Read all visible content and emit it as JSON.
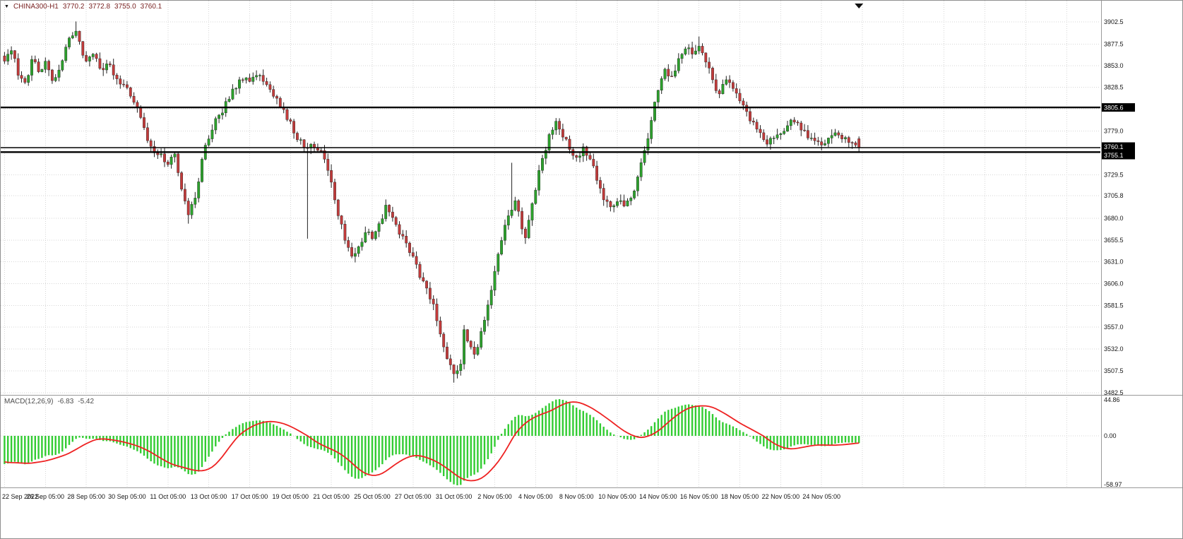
{
  "header": {
    "symbol_timeframe": "CHINA300-H1",
    "open": "3770.2",
    "high": "3772.8",
    "low": "3755.0",
    "close": "3760.1"
  },
  "macd": {
    "label": "MACD(12,26,9)",
    "value": "-6.83",
    "signal_value": "-5.42"
  },
  "chart_data": {
    "type": "candlestick",
    "title": "CHINA300-H1",
    "symbol": "CHINA300",
    "timeframe": "H1",
    "bars": 252,
    "bars_per_gridline": 12,
    "ohlc_last": {
      "o": 3770.2,
      "h": 3772.8,
      "l": 3755.0,
      "c": 3760.1
    },
    "levels": {
      "resistance": 3805.6,
      "support": 3755.1,
      "bid": 3760.1
    },
    "price_axis": {
      "gridlines": [
        3902.5,
        3877.5,
        3853.0,
        3828.5,
        3804.0,
        3779.0,
        3754.5,
        3729.5,
        3705.8,
        3680.0,
        3655.5,
        3631.0,
        3606.0,
        3581.5,
        3557.0,
        3532.0,
        3507.5,
        3482.5
      ],
      "labels": [
        "3902.5",
        "3877.5",
        "3853.0",
        "3828.5",
        "3779.0",
        "3729.5",
        "3705.8",
        "3680.0",
        "3655.5",
        "3631.0",
        "3606.0",
        "3581.5",
        "3557.0",
        "3532.0",
        "3507.5",
        "3482.5"
      ],
      "tags": [
        {
          "value": 3805.6,
          "label": "3805.6"
        },
        {
          "value": 3760.1,
          "label": "3760.1"
        },
        {
          "value": 3755.1,
          "label": "3755.1"
        }
      ]
    },
    "time_axis": {
      "labels": [
        "22 Sep 2022",
        "26 Sep 05:00",
        "28 Sep 05:00",
        "30 Sep 05:00",
        "11 Oct 05:00",
        "13 Oct 05:00",
        "17 Oct 05:00",
        "19 Oct 05:00",
        "21 Oct 05:00",
        "25 Oct 05:00",
        "27 Oct 05:00",
        "31 Oct 05:00",
        "2 Nov 05:00",
        "4 Nov 05:00",
        "8 Nov 05:00",
        "10 Nov 05:00",
        "14 Nov 05:00",
        "16 Nov 05:00",
        "18 Nov 05:00",
        "22 Nov 05:00",
        "24 Nov 05:00"
      ]
    },
    "price_path_pivots": [
      [
        0,
        3858
      ],
      [
        2,
        3870
      ],
      [
        4,
        3842
      ],
      [
        6,
        3834
      ],
      [
        8,
        3860
      ],
      [
        10,
        3846
      ],
      [
        12,
        3858
      ],
      [
        14,
        3836
      ],
      [
        16,
        3848
      ],
      [
        18,
        3874
      ],
      [
        21,
        3892
      ],
      [
        24,
        3858
      ],
      [
        26,
        3866
      ],
      [
        28,
        3850
      ],
      [
        30,
        3855
      ],
      [
        33,
        3838
      ],
      [
        36,
        3828
      ],
      [
        39,
        3806
      ],
      [
        42,
        3768
      ],
      [
        45,
        3752
      ],
      [
        48,
        3741
      ],
      [
        50,
        3753
      ],
      [
        52,
        3713
      ],
      [
        54,
        3684
      ],
      [
        56,
        3703
      ],
      [
        58,
        3747
      ],
      [
        60,
        3770
      ],
      [
        63,
        3797
      ],
      [
        66,
        3815
      ],
      [
        69,
        3837
      ],
      [
        72,
        3835
      ],
      [
        75,
        3842
      ],
      [
        78,
        3826
      ],
      [
        81,
        3806
      ],
      [
        84,
        3790
      ],
      [
        86,
        3769
      ],
      [
        88,
        3760
      ],
      [
        90,
        3764
      ],
      [
        92,
        3757
      ],
      [
        94,
        3747
      ],
      [
        96,
        3721
      ],
      [
        98,
        3683
      ],
      [
        100,
        3655
      ],
      [
        102,
        3637
      ],
      [
        104,
        3648
      ],
      [
        106,
        3664
      ],
      [
        108,
        3657
      ],
      [
        110,
        3674
      ],
      [
        112,
        3695
      ],
      [
        114,
        3681
      ],
      [
        116,
        3662
      ],
      [
        118,
        3652
      ],
      [
        120,
        3637
      ],
      [
        122,
        3613
      ],
      [
        124,
        3601
      ],
      [
        126,
        3583
      ],
      [
        128,
        3549
      ],
      [
        130,
        3521
      ],
      [
        132,
        3504
      ],
      [
        134,
        3515
      ],
      [
        135,
        3554
      ],
      [
        136,
        3541
      ],
      [
        138,
        3526
      ],
      [
        140,
        3552
      ],
      [
        142,
        3582
      ],
      [
        144,
        3620
      ],
      [
        146,
        3655
      ],
      [
        148,
        3683
      ],
      [
        150,
        3700
      ],
      [
        151,
        3688
      ],
      [
        152,
        3668
      ],
      [
        153,
        3658
      ],
      [
        154,
        3678
      ],
      [
        156,
        3712
      ],
      [
        158,
        3748
      ],
      [
        160,
        3775
      ],
      [
        162,
        3790
      ],
      [
        164,
        3772
      ],
      [
        166,
        3758
      ],
      [
        168,
        3749
      ],
      [
        170,
        3761
      ],
      [
        172,
        3747
      ],
      [
        174,
        3723
      ],
      [
        176,
        3701
      ],
      [
        178,
        3693
      ],
      [
        180,
        3699
      ],
      [
        182,
        3694
      ],
      [
        184,
        3703
      ],
      [
        186,
        3727
      ],
      [
        188,
        3757
      ],
      [
        190,
        3791
      ],
      [
        192,
        3825
      ],
      [
        194,
        3849
      ],
      [
        196,
        3841
      ],
      [
        198,
        3861
      ],
      [
        200,
        3872
      ],
      [
        202,
        3866
      ],
      [
        204,
        3875
      ],
      [
        206,
        3857
      ],
      [
        208,
        3837
      ],
      [
        210,
        3821
      ],
      [
        212,
        3837
      ],
      [
        214,
        3827
      ],
      [
        216,
        3813
      ],
      [
        218,
        3801
      ],
      [
        220,
        3789
      ],
      [
        222,
        3777
      ],
      [
        224,
        3764
      ],
      [
        226,
        3771
      ],
      [
        228,
        3776
      ],
      [
        230,
        3785
      ],
      [
        232,
        3789
      ],
      [
        234,
        3780
      ],
      [
        236,
        3771
      ],
      [
        238,
        3768
      ],
      [
        240,
        3763
      ],
      [
        242,
        3771
      ],
      [
        244,
        3777
      ],
      [
        246,
        3770
      ],
      [
        248,
        3766
      ],
      [
        250,
        3763
      ],
      [
        251,
        3760
      ]
    ],
    "wick_overrides": [
      {
        "i": 21,
        "high": 3903
      },
      {
        "i": 54,
        "low": 3674
      },
      {
        "i": 89,
        "low": 3657
      },
      {
        "i": 132,
        "low": 3494
      },
      {
        "i": 149,
        "high": 3743
      },
      {
        "i": 204,
        "high": 3886
      }
    ],
    "macd_panel": {
      "type": "macd",
      "fast": 12,
      "slow": 26,
      "signal_period": 9,
      "last_macd": -6.83,
      "last_signal": -5.42,
      "axis_labels": [
        "44.86",
        "0.00",
        "-58.97"
      ],
      "view_max": 44.86,
      "view_min": -58.97
    }
  },
  "colors": {
    "bull": "#2ca12c",
    "bear": "#c23b3b",
    "wick": "#222222",
    "grid": "#d6d6d6",
    "hline": "#000000",
    "macd_hist": "#33cc33",
    "macd_signal": "#ee2222",
    "tag_bg": "#000000",
    "tag_text": "#ffffff",
    "title": "#7a2323",
    "axis_text": "#151515",
    "separator": "#9a9a9a"
  }
}
